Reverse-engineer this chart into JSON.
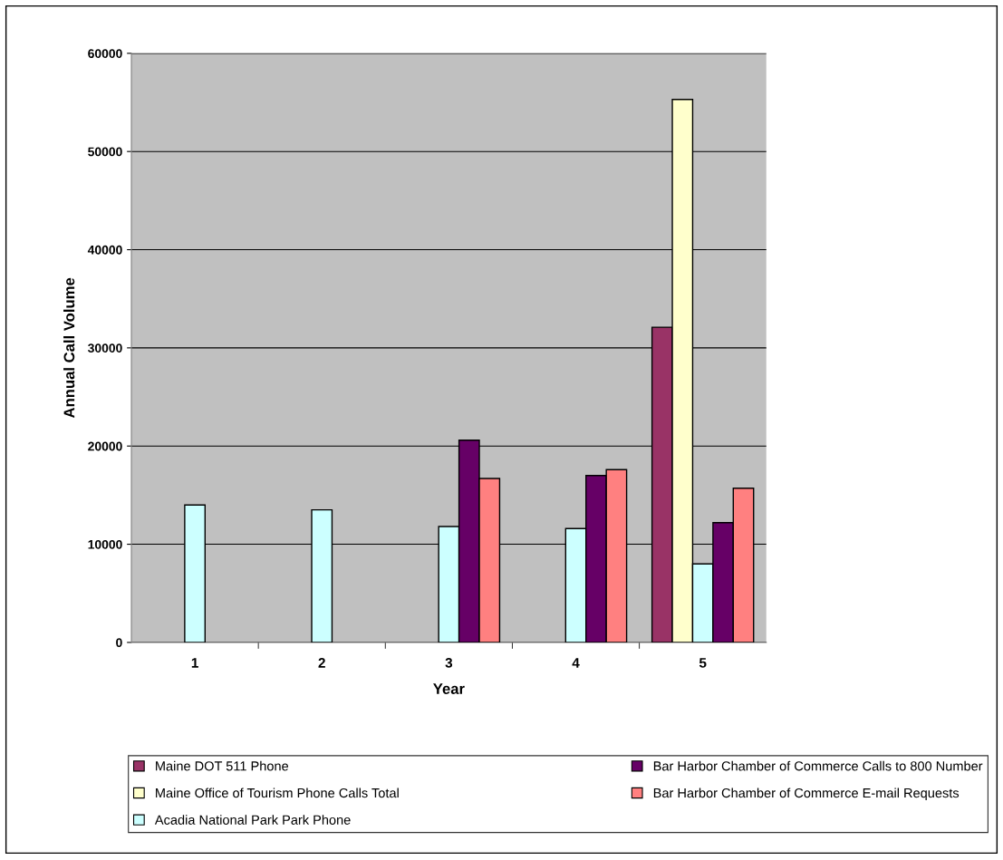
{
  "chart_data": {
    "type": "bar",
    "xlabel": "Year",
    "ylabel": "Annual Call Volume",
    "categories": [
      "1",
      "2",
      "3",
      "4",
      "5"
    ],
    "series": [
      {
        "name": "Maine DOT 511 Phone",
        "color": "#993366",
        "values": [
          null,
          null,
          null,
          null,
          32100
        ]
      },
      {
        "name": "Maine Office of Tourism Phone Calls Total",
        "color": "#ffffcc",
        "values": [
          null,
          null,
          null,
          null,
          55300
        ]
      },
      {
        "name": "Acadia National Park Park Phone",
        "color": "#ccffff",
        "values": [
          14000,
          13500,
          11800,
          11600,
          8000
        ]
      },
      {
        "name": "Bar Harbor Chamber of Commerce Calls to 800 Number",
        "color": "#660066",
        "values": [
          null,
          null,
          20600,
          17000,
          12200
        ]
      },
      {
        "name": "Bar Harbor Chamber of Commerce E-mail Requests",
        "color": "#ff8080",
        "values": [
          null,
          null,
          16700,
          17600,
          15700
        ]
      }
    ],
    "ylim": [
      0,
      60000
    ],
    "yticks": [
      0,
      10000,
      20000,
      30000,
      40000,
      50000,
      60000
    ],
    "grid": "y",
    "legend": "bottom"
  }
}
